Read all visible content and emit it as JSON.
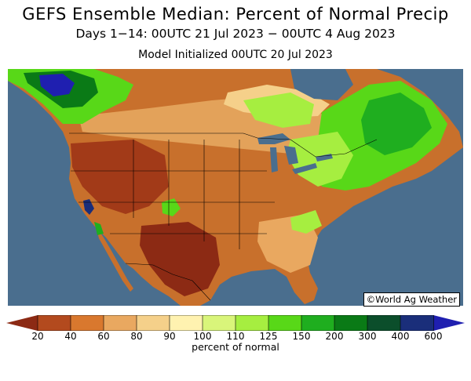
{
  "header": {
    "title": "GEFS Ensemble Median: Percent of Normal Precip",
    "subtitle": "Days 1−14: 00UTC 21 Jul 2023 − 00UTC 4 Aug 2023",
    "init": "Model Initialized 00UTC 20 Jul 2023"
  },
  "map": {
    "credit": "©World Ag Weather",
    "ocean_color": "#4a6e8e"
  },
  "legend": {
    "ticks": [
      "20",
      "40",
      "60",
      "80",
      "90",
      "100",
      "110",
      "125",
      "150",
      "200",
      "300",
      "400",
      "600"
    ],
    "units_label": "percent of normal",
    "colors": [
      "#8c2a14",
      "#b34a1e",
      "#d9782e",
      "#e9a860",
      "#f5d08a",
      "#fff2b0",
      "#d9f57a",
      "#a6ee40",
      "#58d818",
      "#1fae1f",
      "#0a7a16",
      "#0b4e2b",
      "#1a2e7a",
      "#1f1fb0"
    ]
  }
}
